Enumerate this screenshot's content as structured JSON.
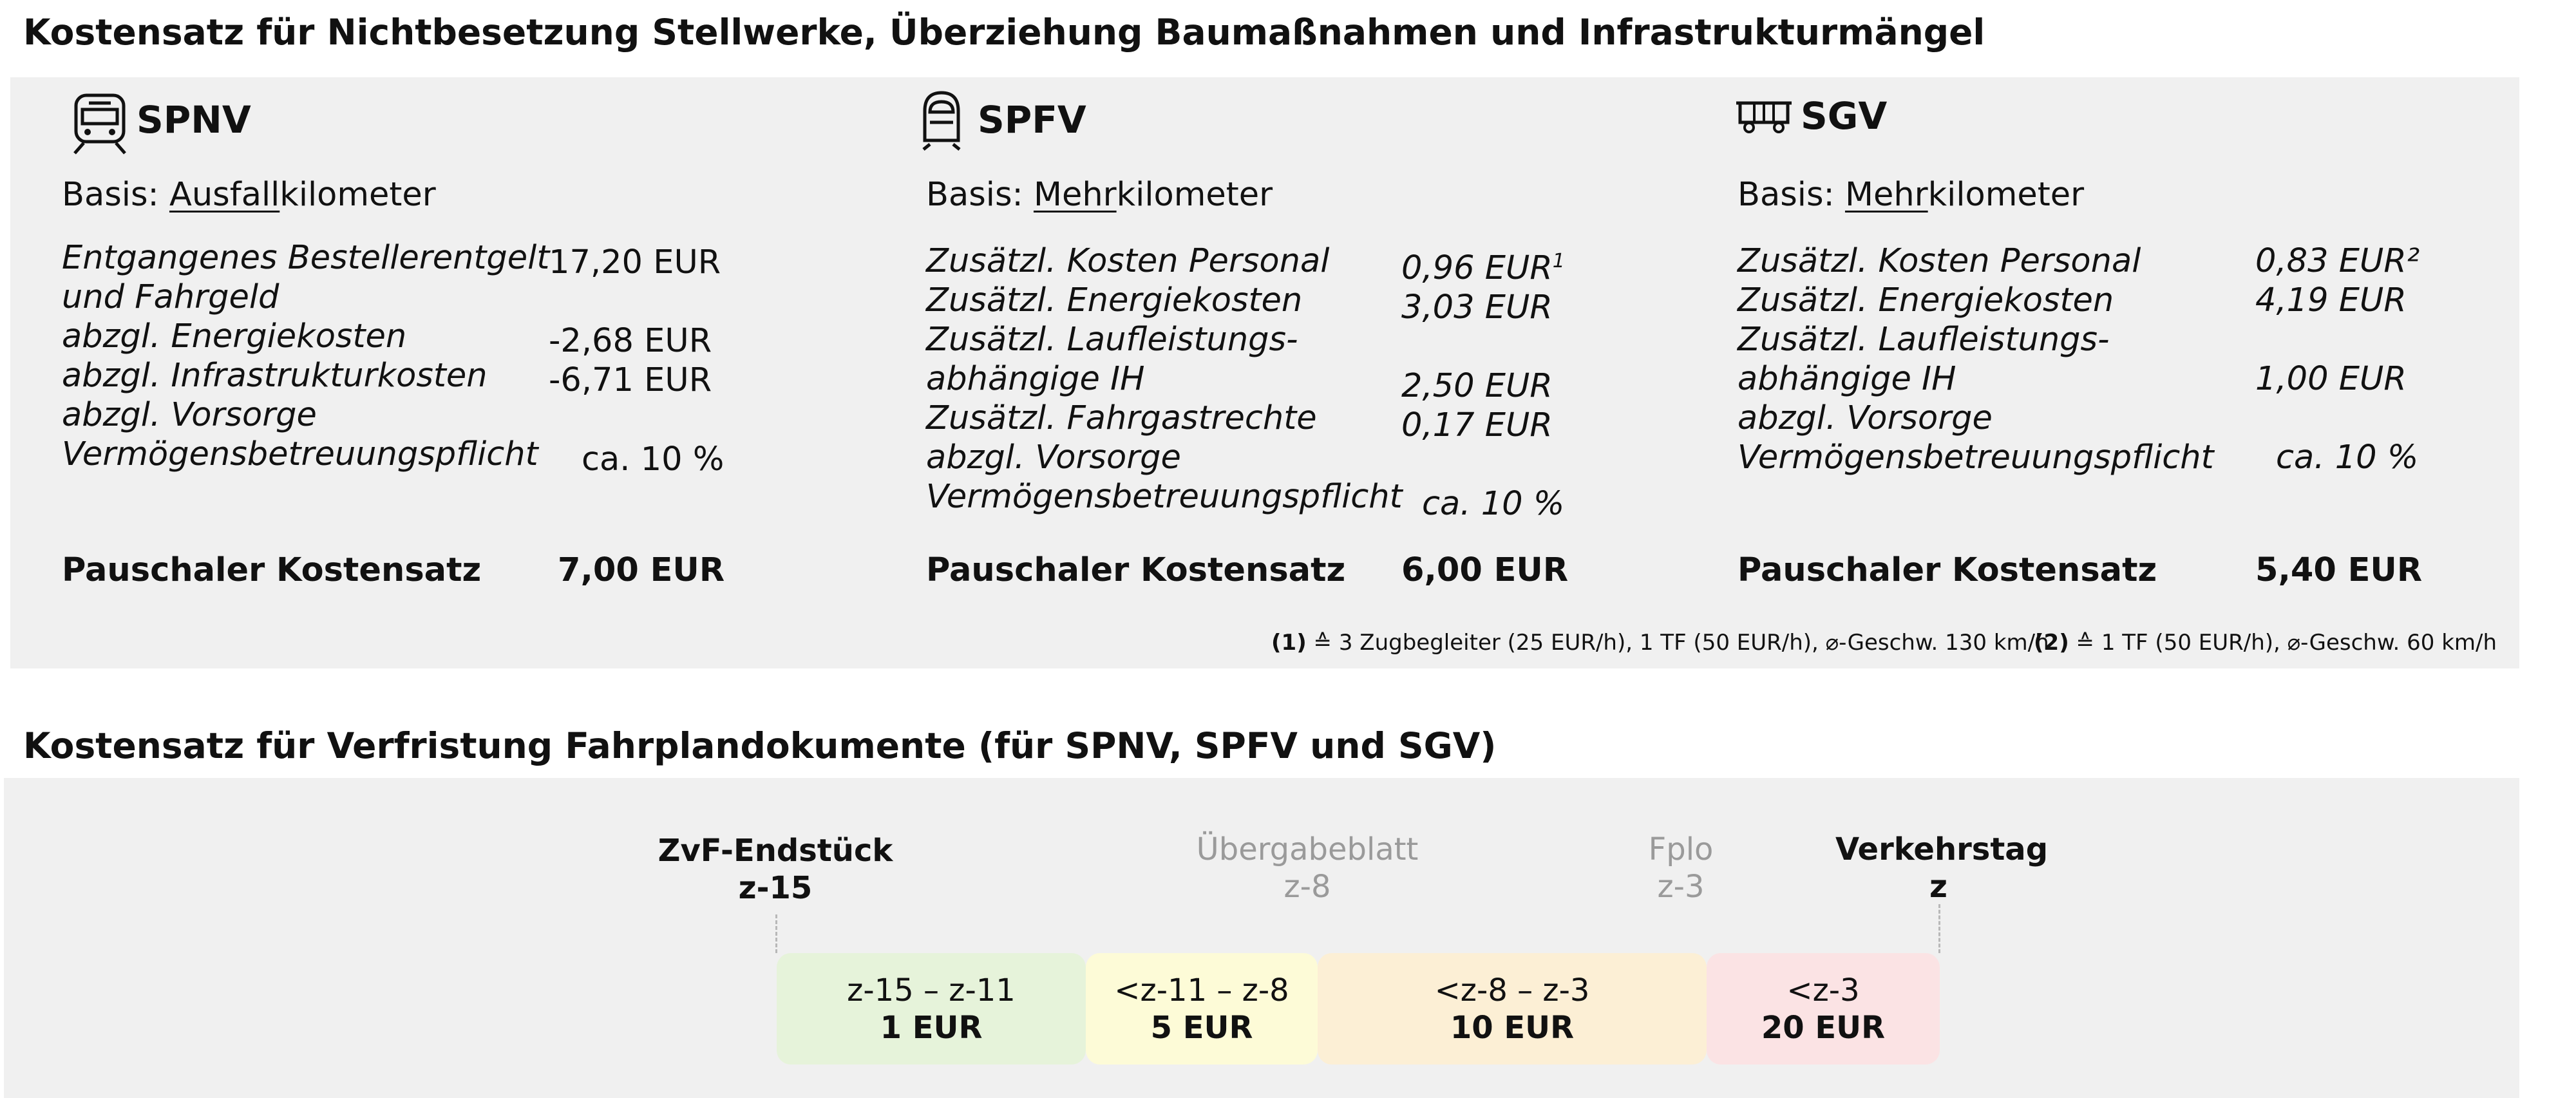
{
  "section1": {
    "title": "Kostensatz für Nichtbesetzung Stellwerke, Überziehung Baumaßnahmen und Infrastrukturmängel",
    "columns": [
      {
        "name": "SPNV",
        "icon": "regional-train-icon",
        "basis_prefix": "Basis: ",
        "basis_underlined": "Ausfall",
        "basis_suffix": "kilometer",
        "items": [
          {
            "label_lines": [
              "Entgangenes Bestellerentgelt",
              "und Fahrgeld"
            ],
            "value": "17,20 EUR"
          },
          {
            "label_lines": [
              "abzgl. Energiekosten"
            ],
            "value": "-2,68 EUR"
          },
          {
            "label_lines": [
              "abzgl. Infrastrukturkosten"
            ],
            "value": "-6,71 EUR"
          },
          {
            "label_lines": [
              "abzgl. Vorsorge",
              "Vermögensbetreuungspflicht"
            ],
            "value": "ca. 10 %"
          }
        ],
        "total_label": "Pauschaler Kostensatz",
        "total_value": "7,00 EUR"
      },
      {
        "name": "SPFV",
        "icon": "high-speed-train-icon",
        "basis_prefix": "Basis: ",
        "basis_underlined": "Mehr",
        "basis_suffix": "kilometer",
        "items": [
          {
            "label_lines": [
              "Zusätzl. Kosten Personal"
            ],
            "value": "0,96 EUR",
            "sup": "1"
          },
          {
            "label_lines": [
              "Zusätzl. Energiekosten"
            ],
            "value": "3,03 EUR"
          },
          {
            "label_lines": [
              "Zusätzl. Laufleistungs-",
              "abhängige IH"
            ],
            "value": "2,50 EUR"
          },
          {
            "label_lines": [
              "Zusätzl. Fahrgastrechte"
            ],
            "value": "0,17 EUR"
          },
          {
            "label_lines": [
              "abzgl. Vorsorge",
              "Vermögensbetreuungspflicht"
            ],
            "value": "ca. 10 %"
          }
        ],
        "total_label": "Pauschaler Kostensatz",
        "total_value": "6,00 EUR"
      },
      {
        "name": "SGV",
        "icon": "freight-wagon-icon",
        "basis_prefix": "Basis: ",
        "basis_underlined": "Mehr",
        "basis_suffix": "kilometer",
        "items": [
          {
            "label_lines": [
              "Zusätzl. Kosten Personal"
            ],
            "value": "0,83 EUR²"
          },
          {
            "label_lines": [
              "Zusätzl. Energiekosten"
            ],
            "value": "4,19 EUR"
          },
          {
            "label_lines": [
              "Zusätzl. Laufleistungs-",
              "abhängige IH"
            ],
            "value": "1,00 EUR"
          },
          {
            "label_lines": [
              "abzgl. Vorsorge",
              "Vermögensbetreuungspflicht"
            ],
            "value": "ca. 10 %"
          }
        ],
        "total_label": "Pauschaler Kostensatz",
        "total_value": "5,40 EUR"
      }
    ],
    "footnotes": [
      {
        "marker": "(1)",
        "text": " ≙ 3 Zugbegleiter (25 EUR/h), 1 TF (50 EUR/h), ⌀-Geschw. 130 km/h"
      },
      {
        "marker": "(2)",
        "text": " ≙ 1 TF (50 EUR/h),  ⌀-Geschw. 60 km/h"
      }
    ]
  },
  "section2": {
    "title": "Kostensatz für Verfristung Fahrplandokumente (für SPNV, SPFV und SGV)",
    "milestones": [
      {
        "name": "ZvF-Endstück",
        "code": "z-15",
        "style": "black"
      },
      {
        "name": "Übergabeblatt",
        "code": "z-8",
        "style": "grey"
      },
      {
        "name": "Fplo",
        "code": "z-3",
        "style": "grey"
      },
      {
        "name": "Verkehrstag",
        "code": "z",
        "style": "black"
      }
    ],
    "segments": [
      {
        "range": "z-15 – z-11",
        "amount": "1 EUR",
        "color": "#e6f3da"
      },
      {
        "range": "<z-11 – z-8",
        "amount": "5 EUR",
        "color": "#fdfbd7"
      },
      {
        "range": "<z-8 – z-3",
        "amount": "10 EUR",
        "color": "#fcefd5"
      },
      {
        "range": "<z-3",
        "amount": "20 EUR",
        "color": "#fbe3e4"
      }
    ]
  }
}
